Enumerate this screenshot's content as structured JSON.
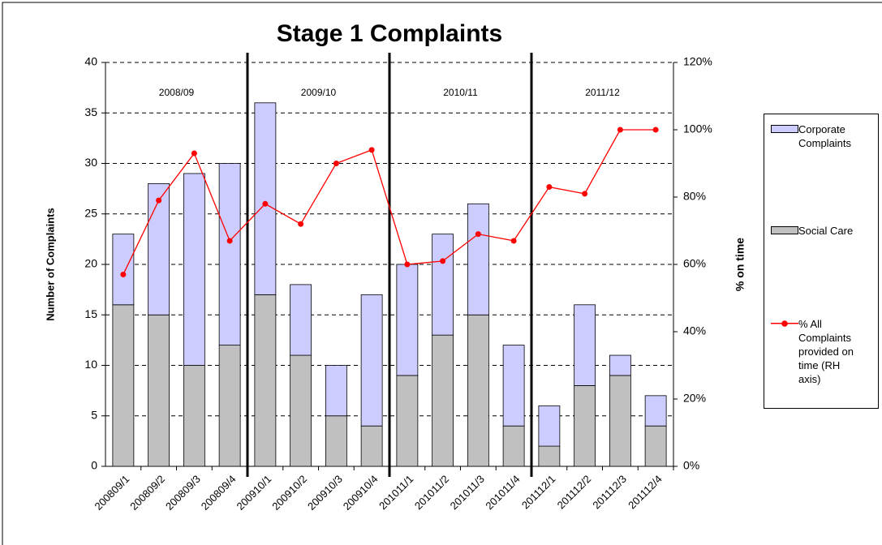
{
  "chart_data": {
    "type": "bar",
    "title": "Stage 1 Complaints",
    "y_label": "Number of Complaints",
    "y2_label": "% on time",
    "annotations": [
      "2008/09",
      "2009/10",
      "2010/11",
      "2011/12"
    ],
    "categories": [
      "200809/1",
      "200809/2",
      "200809/3",
      "200809/4",
      "200910/1",
      "200910/2",
      "200910/3",
      "200910/4",
      "201011/1",
      "201011/2",
      "201011/3",
      "201011/4",
      "201112/1",
      "201112/2",
      "201112/3",
      "201112/4"
    ],
    "series": [
      {
        "name": "Corporate Complaints",
        "type": "bar",
        "color": "#ccccff",
        "values": [
          7,
          13,
          19,
          18,
          19,
          7,
          5,
          13,
          11,
          10,
          11,
          8,
          4,
          8,
          2,
          3
        ]
      },
      {
        "name": "Social Care",
        "type": "bar",
        "color": "#c0c0c0",
        "values": [
          16,
          15,
          10,
          12,
          17,
          11,
          5,
          4,
          9,
          13,
          15,
          4,
          2,
          8,
          9,
          4
        ]
      },
      {
        "name": "% All Complaints provided on time (RH axis)",
        "type": "line",
        "axis": "y2",
        "color": "#ff0000",
        "values": [
          57,
          79,
          93,
          67,
          78,
          72,
          90,
          94,
          60,
          61,
          69,
          67,
          83,
          81,
          100,
          100
        ]
      }
    ],
    "ylim": [
      0,
      40
    ],
    "yticks": [
      0,
      5,
      10,
      15,
      20,
      25,
      30,
      35,
      40
    ],
    "y2lim": [
      0,
      120
    ],
    "y2ticks": [
      {
        "value": 0,
        "label": "0%"
      },
      {
        "value": 20,
        "label": "20%"
      },
      {
        "value": 40,
        "label": "40%"
      },
      {
        "value": 60,
        "label": "60%"
      },
      {
        "value": 80,
        "label": "80%"
      },
      {
        "value": 100,
        "label": "100%"
      },
      {
        "value": 120,
        "label": "120%"
      }
    ],
    "grid": true,
    "legend": "right"
  }
}
